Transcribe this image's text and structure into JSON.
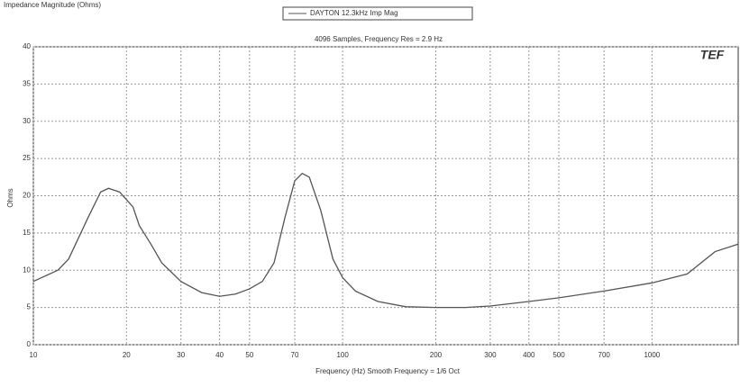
{
  "chart_data": {
    "type": "line",
    "title": "Impedance Magnitude (Ohms)",
    "legend_label": "DAYTON 12.3kHz Imp Mag",
    "subtitle": "4096 Samples, Frequency Res = 2.9 Hz",
    "logo": "TEF",
    "xlabel": "Frequency (Hz) Smooth Frequency = 1/6 Oct",
    "ylabel": "Ohms",
    "xscale": "log",
    "grid": true,
    "xlim": [
      10,
      1900
    ],
    "xticks": [
      10,
      20,
      30,
      40,
      50,
      70,
      100,
      200,
      300,
      400,
      500,
      700,
      1000
    ],
    "ylim": [
      0,
      40
    ],
    "yticks": [
      0,
      5,
      10,
      15,
      20,
      25,
      30,
      35,
      40
    ],
    "series": [
      {
        "name": "DAYTON 12.3kHz Imp Mag",
        "color": "#555555",
        "x": [
          10,
          12,
          13,
          15,
          16.5,
          17.5,
          19,
          21,
          22,
          24,
          26,
          30,
          35,
          40,
          45,
          50,
          55,
          60,
          65,
          70,
          74,
          78,
          85,
          93,
          100,
          110,
          130,
          160,
          200,
          250,
          300,
          400,
          500,
          700,
          1000,
          1300,
          1600,
          1900
        ],
        "values": [
          8.5,
          10,
          11.5,
          17,
          20.5,
          21,
          20.5,
          18.5,
          16,
          13.5,
          11,
          8.5,
          7,
          6.5,
          6.8,
          7.5,
          8.5,
          11,
          17,
          22,
          23,
          22.5,
          18,
          11.5,
          9,
          7.2,
          5.8,
          5.1,
          5,
          5,
          5.2,
          5.8,
          6.3,
          7.2,
          8.3,
          9.5,
          12.5,
          13.5
        ]
      }
    ]
  }
}
